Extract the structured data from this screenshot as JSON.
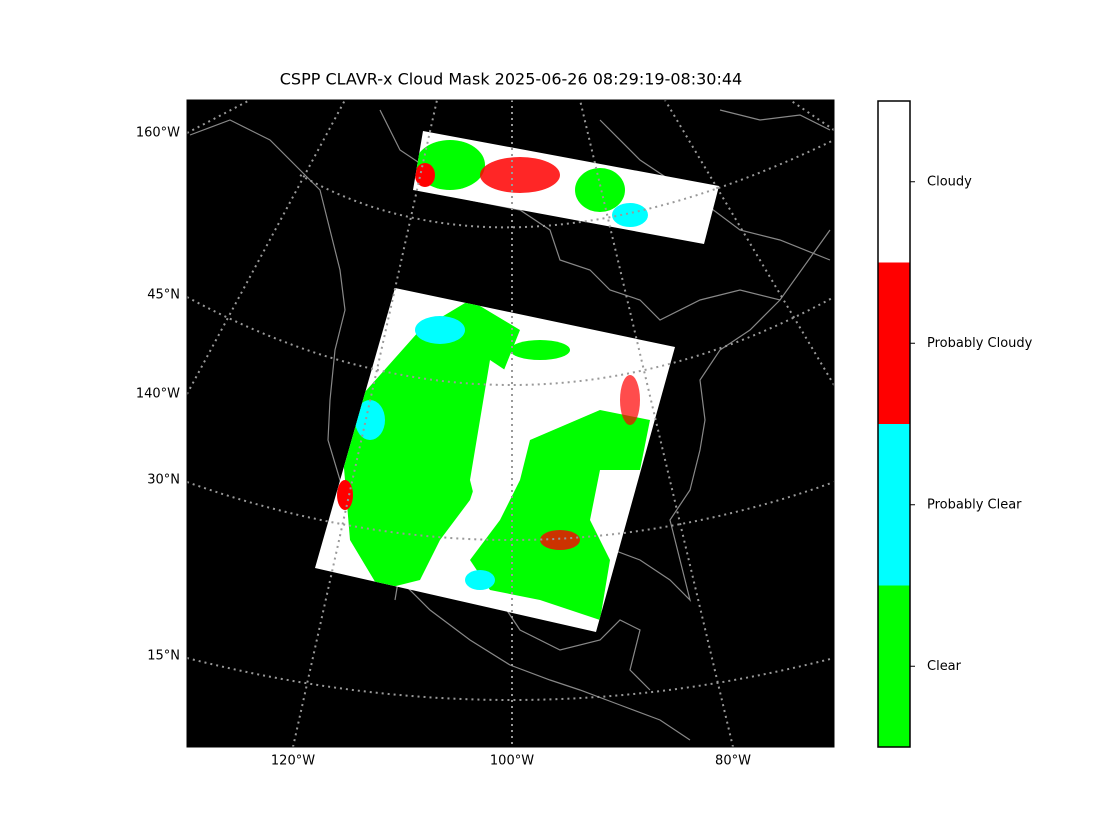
{
  "title": "CSPP CLAVR-x Cloud Mask 2025-06-26 08:29:19-08:30:44",
  "map": {
    "left_labels": [
      "160°W",
      "45°N",
      "140°W",
      "30°N",
      "15°N"
    ],
    "bottom_labels": [
      "120°W",
      "100°W",
      "80°W"
    ]
  },
  "colorbar": {
    "classes": [
      {
        "label": "Clear",
        "color": "#00ff00"
      },
      {
        "label": "Probably Clear",
        "color": "#00ffff"
      },
      {
        "label": "Probably Cloudy",
        "color": "#ff0000"
      },
      {
        "label": "Cloudy",
        "color": "#ffffff"
      }
    ]
  }
}
